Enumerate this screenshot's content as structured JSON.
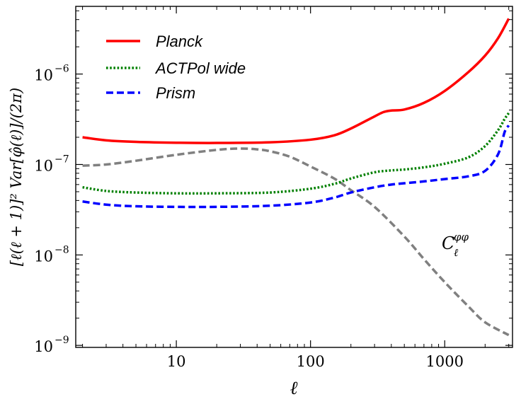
{
  "chart_data": {
    "type": "line",
    "title": "",
    "xlabel": "ℓ",
    "ylabel": "[ℓ(ℓ + 1)]² Var[φ̂(ℓ)]/(2π)",
    "xscale": "log",
    "yscale": "log",
    "xlim": [
      1.78,
      3200
    ],
    "ylim": [
      9.5e-10,
      5.6e-06
    ],
    "x_ticks": [
      {
        "value": 10,
        "label": "10"
      },
      {
        "value": 100,
        "label": "100"
      },
      {
        "value": 1000,
        "label": "1000"
      }
    ],
    "y_ticks": [
      {
        "value": 1e-09,
        "base": "10",
        "exp": "−9"
      },
      {
        "value": 1e-08,
        "base": "10",
        "exp": "−8"
      },
      {
        "value": 1e-07,
        "base": "10",
        "exp": "−7"
      },
      {
        "value": 1e-06,
        "base": "10",
        "exp": "−6"
      }
    ],
    "legend_position": "top-left",
    "annotation": {
      "base": "C",
      "sub": "ℓ",
      "sup": "φφ",
      "near_x": 1400,
      "near_y": 1.3e-08
    },
    "series": [
      {
        "name": "Planck",
        "color": "#ff0000",
        "style": "solid",
        "in_legend": true,
        "x": [
          2,
          3,
          5,
          10,
          20,
          50,
          100,
          150,
          200,
          300,
          350,
          400,
          500,
          700,
          1000,
          1500,
          2000,
          2500,
          3000
        ],
        "y": [
          2e-07,
          1.85e-07,
          1.78e-07,
          1.74e-07,
          1.73e-07,
          1.76e-07,
          1.88e-07,
          2.1e-07,
          2.5e-07,
          3.4e-07,
          3.8e-07,
          3.95e-07,
          4.05e-07,
          4.8e-07,
          6.5e-07,
          1.05e-06,
          1.6e-06,
          2.5e-06,
          4.1e-06
        ]
      },
      {
        "name": "ACTPol wide",
        "color": "#008000",
        "style": "dotted",
        "in_legend": true,
        "x": [
          2,
          3,
          5,
          10,
          20,
          50,
          100,
          150,
          200,
          300,
          400,
          500,
          700,
          1000,
          1500,
          2000,
          2500,
          2800,
          3000
        ],
        "y": [
          5.6e-08,
          5.1e-08,
          4.9e-08,
          4.8e-08,
          4.8e-08,
          4.9e-08,
          5.4e-08,
          6.1e-08,
          7e-08,
          8.2e-08,
          8.6e-08,
          8.8e-08,
          9.3e-08,
          1.02e-07,
          1.2e-07,
          1.6e-07,
          2.4e-07,
          3.2e-07,
          3.7e-07
        ]
      },
      {
        "name": "Prism",
        "color": "#0000ff",
        "style": "dashed",
        "in_legend": true,
        "x": [
          2,
          3,
          5,
          10,
          20,
          50,
          100,
          150,
          200,
          300,
          400,
          500,
          700,
          1000,
          1500,
          2000,
          2500,
          2800,
          3000
        ],
        "y": [
          3.9e-08,
          3.6e-08,
          3.45e-08,
          3.4e-08,
          3.4e-08,
          3.5e-08,
          3.8e-08,
          4.3e-08,
          4.9e-08,
          5.6e-08,
          6e-08,
          6.2e-08,
          6.5e-08,
          6.9e-08,
          7.4e-08,
          8.5e-08,
          1.3e-07,
          2.3e-07,
          2.7e-07
        ]
      },
      {
        "name": "C_ℓ^φφ",
        "color": "#808080",
        "style": "dashed",
        "in_legend": false,
        "x": [
          2,
          3,
          5,
          10,
          20,
          30,
          40,
          50,
          70,
          100,
          150,
          200,
          300,
          500,
          700,
          1000,
          1500,
          2000,
          3000
        ],
        "y": [
          9.7e-08,
          1e-07,
          1.1e-07,
          1.28e-07,
          1.45e-07,
          1.5e-07,
          1.47e-07,
          1.4e-07,
          1.22e-07,
          9.5e-08,
          7e-08,
          5.2e-08,
          3.4e-08,
          1.6e-08,
          9e-09,
          5e-09,
          2.7e-09,
          1.8e-09,
          1.3e-09
        ]
      }
    ]
  }
}
